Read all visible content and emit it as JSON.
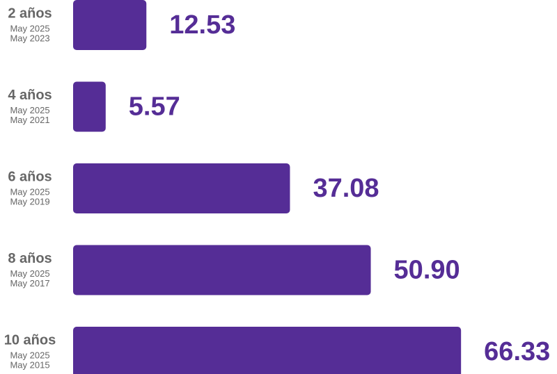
{
  "chart_data": {
    "type": "bar",
    "orientation": "horizontal",
    "categories": [
      "2 años",
      "4 años",
      "6 años",
      "8 años",
      "10 años"
    ],
    "subtitles": [
      [
        "May 2025",
        "May 2023"
      ],
      [
        "May 2025",
        "May 2021"
      ],
      [
        "May 2025",
        "May 2019"
      ],
      [
        "May 2025",
        "May 2017"
      ],
      [
        "May 2025",
        "May 2015"
      ]
    ],
    "values": [
      12.53,
      5.57,
      37.08,
      50.9,
      66.33
    ],
    "value_labels": [
      "12.53",
      "5.57",
      "37.08",
      "50.90",
      "66.33"
    ],
    "color": "#552d96"
  }
}
